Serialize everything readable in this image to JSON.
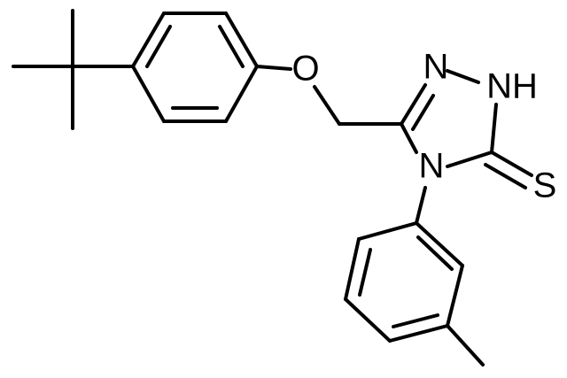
{
  "atoms": [
    {
      "label": "O"
    },
    {
      "label": "N"
    },
    {
      "label": "NH"
    },
    {
      "label": "N"
    },
    {
      "label": "S"
    }
  ]
}
